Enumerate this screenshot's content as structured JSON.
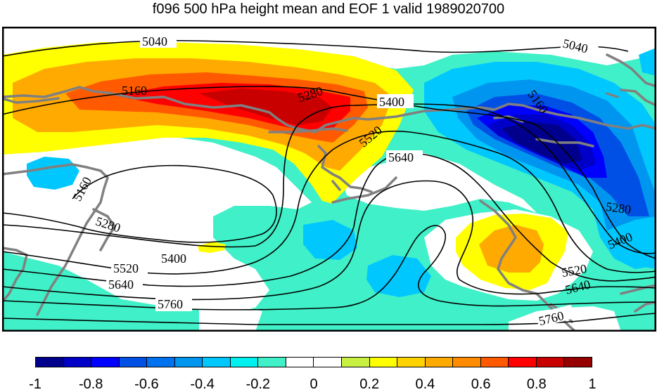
{
  "title": "f096 500 hPa height mean and EOF 1 valid 1989020700",
  "contour_labels": [
    "5040",
    "5040",
    "5160",
    "5160",
    "5160",
    "5280",
    "5280",
    "5280",
    "5400",
    "5400",
    "5400",
    "5520",
    "5520",
    "5520",
    "5640",
    "5640",
    "5640",
    "5760",
    "5760"
  ],
  "colorbar": {
    "colors": [
      "#00008c",
      "#0000c8",
      "#0000ff",
      "#0050e6",
      "#0072f0",
      "#0096f0",
      "#00c8ff",
      "#00f0f0",
      "#40f0c8",
      "#ffffff",
      "#ffffff",
      "#c8f040",
      "#ffff00",
      "#ffd200",
      "#ffaa00",
      "#ff8c00",
      "#ff5a00",
      "#ff0000",
      "#c80000",
      "#960000"
    ],
    "tick_labels": [
      "-1",
      "-0.8",
      "-0.6",
      "-0.4",
      "-0.2",
      "0",
      "0.2",
      "0.4",
      "0.6",
      "0.8",
      "1"
    ]
  },
  "colors": {
    "coastline": "#808080",
    "contour": "#000000",
    "background": "#ffffff"
  }
}
